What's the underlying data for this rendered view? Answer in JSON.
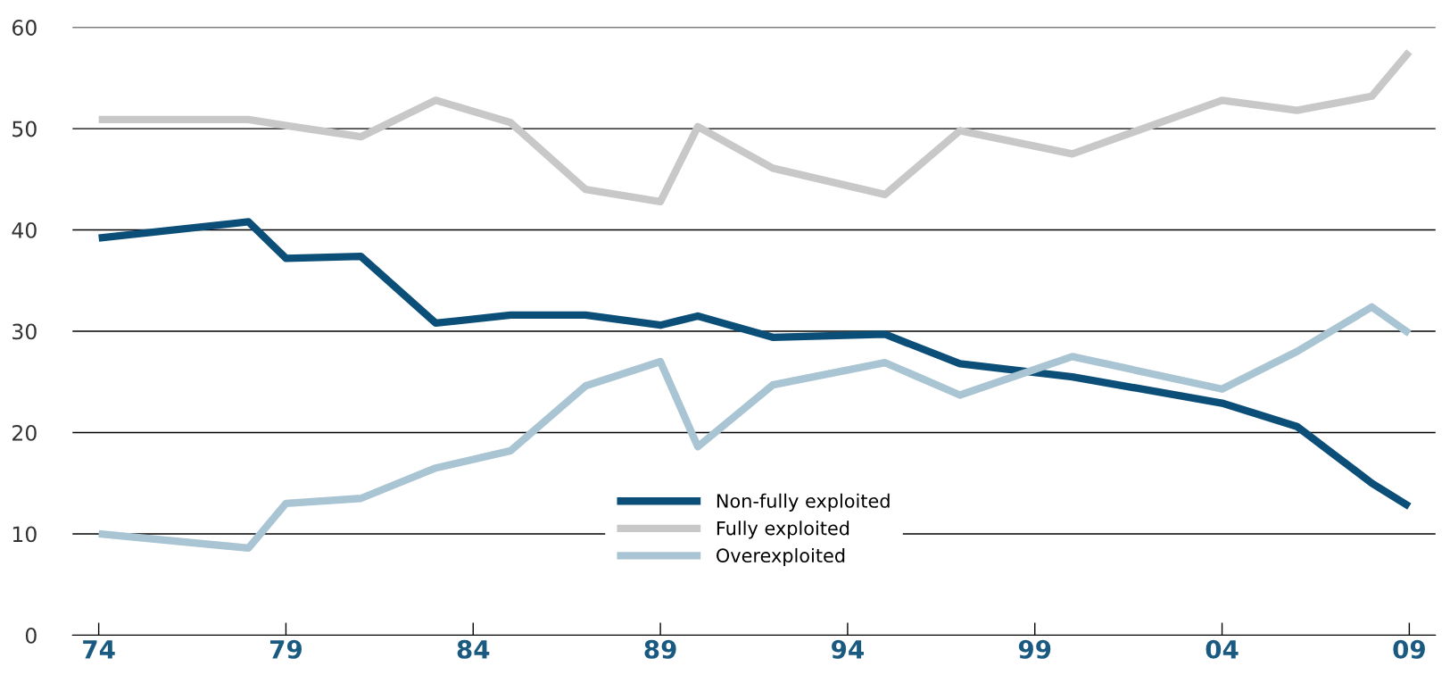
{
  "chart_data": {
    "type": "line",
    "x": [
      1974,
      1978,
      1979,
      1981,
      1983,
      1985,
      1987,
      1989,
      1990,
      1992,
      1995,
      1997,
      2000,
      2004,
      2006,
      2008,
      2009
    ],
    "series": [
      {
        "name": "Non-fully exploited",
        "color": "#0b4f78",
        "values": [
          39.2,
          40.8,
          37.2,
          37.4,
          30.8,
          31.6,
          31.6,
          30.6,
          31.5,
          29.4,
          29.7,
          26.8,
          25.5,
          22.9,
          20.6,
          15.0,
          12.7
        ]
      },
      {
        "name": "Fully exploited",
        "color": "#c8c8c8",
        "values": [
          50.9,
          50.9,
          50.3,
          49.2,
          52.8,
          50.6,
          44.0,
          42.8,
          50.2,
          46.1,
          43.5,
          49.8,
          47.5,
          52.8,
          51.8,
          53.2,
          57.6
        ]
      },
      {
        "name": "Overexploited",
        "color": "#a9c4d2",
        "values": [
          10.0,
          8.6,
          13.0,
          13.5,
          16.5,
          18.2,
          24.6,
          27.0,
          18.6,
          24.7,
          26.9,
          23.7,
          27.5,
          24.3,
          28.0,
          32.4,
          29.8
        ]
      }
    ],
    "xlim": [
      1973.3,
      2009.7
    ],
    "xticks": [
      {
        "value": 1974,
        "label": "74"
      },
      {
        "value": 1979,
        "label": "79"
      },
      {
        "value": 1984,
        "label": "84"
      },
      {
        "value": 1989,
        "label": "89"
      },
      {
        "value": 1994,
        "label": "94"
      },
      {
        "value": 1999,
        "label": "99"
      },
      {
        "value": 2004,
        "label": "04"
      },
      {
        "value": 2009,
        "label": "09"
      }
    ],
    "ylim": [
      0,
      60
    ],
    "yticks": [
      0,
      10,
      20,
      30,
      40,
      50,
      60
    ],
    "grid": "y",
    "legend": "bottom",
    "marker": "none",
    "line_style": "solid"
  }
}
